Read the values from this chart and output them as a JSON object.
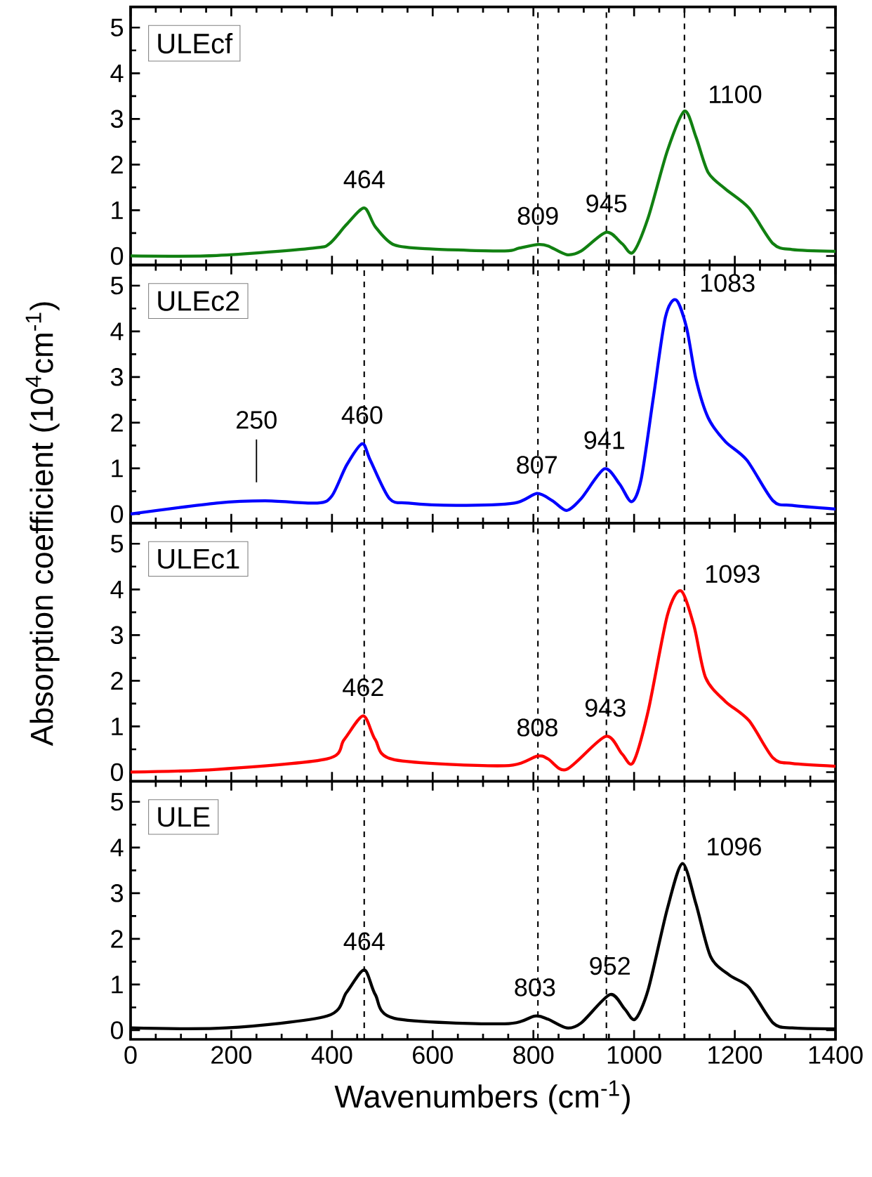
{
  "chart_data": [
    {
      "type": "line",
      "ylabel": "Absorption coefficient (10$^{4}$cm$^{-1}$)",
      "xlim": [
        0,
        1400
      ],
      "xticks": [
        0,
        200,
        400,
        600,
        800,
        1000,
        1200,
        1400
      ],
      "ylim": [
        -0.2,
        5.45
      ],
      "yticks": [
        0,
        1,
        2,
        3,
        4,
        5
      ],
      "tick_labels": "y",
      "legend": "top left",
      "series": [
        {
          "name": "ULEcf",
          "color": "#118011",
          "x": [
            0,
            171,
            362,
            395,
            429,
            464,
            486,
            524,
            600,
            743,
            771,
            809,
            829,
            866,
            895,
            945,
            976,
            998,
            1028,
            1066,
            1100,
            1123,
            1147,
            1181,
            1228,
            1276,
            1314,
            1400
          ],
          "values": [
            0.0,
            0.01,
            0.17,
            0.27,
            0.69,
            1.05,
            0.64,
            0.24,
            0.15,
            0.11,
            0.17,
            0.25,
            0.22,
            0.03,
            0.11,
            0.52,
            0.27,
            0.08,
            0.84,
            2.3,
            3.17,
            2.6,
            1.83,
            1.47,
            1.05,
            0.27,
            0.14,
            0.1
          ]
        }
      ],
      "ref_lines": [
        {
          "axis": "x",
          "value": 809,
          "color": "#000000",
          "line_style": "dashed"
        },
        {
          "axis": "x",
          "value": 945,
          "color": "#000000",
          "line_style": "dashed"
        },
        {
          "axis": "x",
          "value": 1100,
          "color": "#000000",
          "line_style": "dashed"
        }
      ],
      "annotations": [
        {
          "text": "464",
          "x": 464,
          "y": 1.05
        },
        {
          "text": "809",
          "x": 809,
          "y": 0.25
        },
        {
          "text": "945",
          "x": 945,
          "y": 0.52
        },
        {
          "text": "1100",
          "x": 1100,
          "y": 3.17
        }
      ]
    },
    {
      "type": "line",
      "xlim": [
        0,
        1400
      ],
      "xticks": [
        0,
        200,
        400,
        600,
        800,
        1000,
        1200,
        1400
      ],
      "ylim": [
        -0.2,
        5.45
      ],
      "yticks": [
        0,
        1,
        2,
        3,
        4,
        5
      ],
      "tick_labels": "y",
      "legend": "top left",
      "series": [
        {
          "name": "ULEc2",
          "color": "#0000ff",
          "x": [
            0,
            171,
            267,
            371,
            400,
            429,
            460,
            476,
            514,
            552,
            647,
            762,
            807,
            838,
            866,
            895,
            941,
            971,
            995,
            1014,
            1038,
            1062,
            1083,
            1104,
            1123,
            1147,
            1181,
            1224,
            1276,
            1314,
            1400
          ],
          "values": [
            0.0,
            0.24,
            0.29,
            0.24,
            0.4,
            1.07,
            1.54,
            1.18,
            0.34,
            0.24,
            0.19,
            0.24,
            0.45,
            0.29,
            0.08,
            0.34,
            0.99,
            0.66,
            0.27,
            0.76,
            2.53,
            4.3,
            4.69,
            4.09,
            2.95,
            2.11,
            1.59,
            1.18,
            0.29,
            0.19,
            0.11
          ]
        }
      ],
      "ref_lines": [
        {
          "axis": "x",
          "value": 464,
          "color": "#000000",
          "line_style": "dashed"
        },
        {
          "axis": "x",
          "value": 809,
          "color": "#000000",
          "line_style": "dashed"
        },
        {
          "axis": "x",
          "value": 945,
          "color": "#000000",
          "line_style": "dashed"
        },
        {
          "axis": "x",
          "value": 1100,
          "color": "#000000",
          "line_style": "dashed"
        }
      ],
      "annotations": [
        {
          "text": "250",
          "x": 250,
          "y": 0.29
        },
        {
          "text": "460",
          "x": 460,
          "y": 1.54
        },
        {
          "text": "807",
          "x": 807,
          "y": 0.45
        },
        {
          "text": "941",
          "x": 941,
          "y": 0.99
        },
        {
          "text": "1083",
          "x": 1083,
          "y": 4.69
        }
      ]
    },
    {
      "type": "line",
      "xlim": [
        0,
        1400
      ],
      "xticks": [
        0,
        200,
        400,
        600,
        800,
        1000,
        1200,
        1400
      ],
      "ylim": [
        -0.2,
        5.45
      ],
      "yticks": [
        0,
        1,
        2,
        3,
        4,
        5
      ],
      "tick_labels": "y",
      "legend": "top left",
      "series": [
        {
          "name": "ULEc1",
          "color": "#ff0000",
          "x": [
            0,
            171,
            390,
            424,
            462,
            486,
            524,
            743,
            808,
            829,
            866,
            943,
            976,
            998,
            1028,
            1066,
            1093,
            1119,
            1142,
            1181,
            1228,
            1276,
            1314,
            1400
          ],
          "values": [
            0.0,
            0.06,
            0.29,
            0.71,
            1.23,
            0.71,
            0.27,
            0.14,
            0.35,
            0.29,
            0.06,
            0.78,
            0.4,
            0.21,
            1.34,
            3.43,
            3.97,
            3.2,
            2.07,
            1.55,
            1.13,
            0.31,
            0.19,
            0.13
          ]
        }
      ],
      "ref_lines": [
        {
          "axis": "x",
          "value": 464,
          "color": "#000000",
          "line_style": "dashed"
        },
        {
          "axis": "x",
          "value": 809,
          "color": "#000000",
          "line_style": "dashed"
        },
        {
          "axis": "x",
          "value": 945,
          "color": "#000000",
          "line_style": "dashed"
        },
        {
          "axis": "x",
          "value": 1100,
          "color": "#000000",
          "line_style": "dashed"
        }
      ],
      "annotations": [
        {
          "text": "462",
          "x": 462,
          "y": 1.23
        },
        {
          "text": "808",
          "x": 808,
          "y": 0.35
        },
        {
          "text": "943",
          "x": 943,
          "y": 0.78
        },
        {
          "text": "1093",
          "x": 1093,
          "y": 3.97
        }
      ]
    },
    {
      "type": "line",
      "xlabel": "Wavenumbers (cm$^{-1}$)",
      "xlim": [
        0,
        1400
      ],
      "xticks": [
        0,
        200,
        400,
        600,
        800,
        1000,
        1200,
        1400
      ],
      "ylim": [
        -0.2,
        5.45
      ],
      "yticks": [
        0,
        1,
        2,
        3,
        4,
        5
      ],
      "legend": "top left",
      "series": [
        {
          "name": "ULE",
          "color": "#000000",
          "x": [
            0,
            190,
            390,
            429,
            464,
            486,
            524,
            743,
            803,
            829,
            866,
            895,
            952,
            981,
            1002,
            1028,
            1066,
            1096,
            1123,
            1152,
            1190,
            1228,
            1276,
            1314,
            1400
          ],
          "values": [
            0.05,
            0.05,
            0.31,
            0.83,
            1.32,
            0.78,
            0.26,
            0.14,
            0.31,
            0.24,
            0.05,
            0.16,
            0.78,
            0.47,
            0.24,
            0.89,
            2.66,
            3.65,
            2.76,
            1.61,
            1.2,
            0.94,
            0.16,
            0.05,
            0.03
          ]
        }
      ],
      "ref_lines": [
        {
          "axis": "x",
          "value": 464,
          "color": "#000000",
          "line_style": "dashed"
        },
        {
          "axis": "x",
          "value": 809,
          "color": "#000000",
          "line_style": "dashed"
        },
        {
          "axis": "x",
          "value": 945,
          "color": "#000000",
          "line_style": "dashed"
        },
        {
          "axis": "x",
          "value": 1100,
          "color": "#000000",
          "line_style": "dashed"
        }
      ],
      "annotations": [
        {
          "text": "464",
          "x": 464,
          "y": 1.32
        },
        {
          "text": "803",
          "x": 803,
          "y": 0.31
        },
        {
          "text": "952",
          "x": 952,
          "y": 0.78
        },
        {
          "text": "1096",
          "x": 1096,
          "y": 3.65
        }
      ]
    }
  ]
}
